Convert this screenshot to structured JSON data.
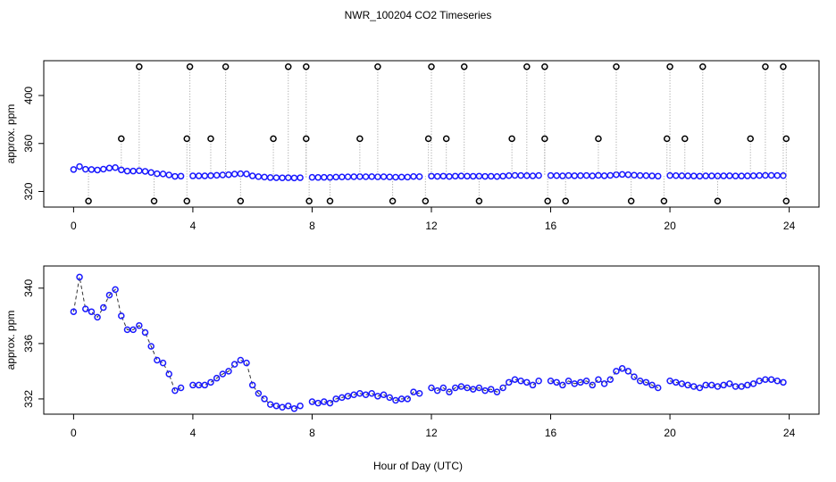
{
  "chart_data": [
    {
      "type": "scatter",
      "title": "NWR_100204  CO2 Timeseries",
      "ylabel": "approx. ppm",
      "xlim": [
        -1,
        25
      ],
      "ylim": [
        307,
        429
      ],
      "xticks": [
        0,
        4,
        8,
        12,
        16,
        20,
        24
      ],
      "yticks": [
        320,
        360,
        400
      ],
      "series": [
        {
          "color": "#1a1aff",
          "marker": "circle",
          "x": [
            0,
            0.2,
            0.4,
            0.6,
            0.8,
            1,
            1.2,
            1.4,
            1.6,
            1.8,
            2,
            2.2,
            2.4,
            2.6,
            2.8,
            3,
            3.2,
            3.4,
            3.6,
            3.8,
            4,
            4.2,
            4.4,
            4.6,
            4.8,
            5,
            5.2,
            5.4,
            5.6,
            5.8,
            6,
            6.2,
            6.4,
            6.6,
            6.8,
            7,
            7.2,
            7.4,
            7.6,
            7.8,
            8,
            8.2,
            8.4,
            8.6,
            8.8,
            9,
            9.2,
            9.4,
            9.6,
            9.8,
            10,
            10.2,
            10.4,
            10.6,
            10.8,
            11,
            11.2,
            11.4,
            11.6,
            11.8,
            12,
            12.2,
            12.4,
            12.6,
            12.8,
            13,
            13.2,
            13.4,
            13.6,
            13.8,
            14,
            14.2,
            14.4,
            14.6,
            14.8,
            15,
            15.2,
            15.4,
            15.6,
            15.8,
            16,
            16.2,
            16.4,
            16.6,
            16.8,
            17,
            17.2,
            17.4,
            17.6,
            17.8,
            18,
            18.2,
            18.4,
            18.6,
            18.8,
            19,
            19.2,
            19.4,
            19.6,
            19.8,
            20,
            20.2,
            20.4,
            20.6,
            20.8,
            21,
            21.2,
            21.4,
            21.6,
            21.8,
            22,
            22.2,
            22.4,
            22.6,
            22.8,
            23,
            23.2,
            23.4,
            23.6,
            23.8
          ],
          "values": [
            338.3,
            340.8,
            338.5,
            338.3,
            337.9,
            338.6,
            339.5,
            339.9,
            338,
            337,
            337,
            337.3,
            336.8,
            335.8,
            334.8,
            334.6,
            333.8,
            332.6,
            332.8,
            null,
            333,
            333,
            333,
            333.2,
            333.5,
            333.8,
            334,
            334.5,
            334.8,
            334.6,
            333,
            332.4,
            332,
            331.6,
            331.5,
            331.4,
            331.5,
            331.3,
            331.5,
            null,
            331.8,
            331.7,
            331.8,
            331.7,
            332,
            332.1,
            332.2,
            332.3,
            332.4,
            332.3,
            332.4,
            332.2,
            332.3,
            332.1,
            331.9,
            332,
            332,
            332.5,
            332.4,
            null,
            332.8,
            332.6,
            332.8,
            332.5,
            332.8,
            332.9,
            332.8,
            332.7,
            332.8,
            332.6,
            332.7,
            332.5,
            332.8,
            333.2,
            333.4,
            333.3,
            333.2,
            333,
            333.3,
            null,
            333.3,
            333.2,
            333,
            333.3,
            333.1,
            333.2,
            333.3,
            333,
            333.4,
            333.1,
            333.4,
            334,
            334.2,
            334,
            333.6,
            333.3,
            333.2,
            333,
            332.8,
            null,
            333.3,
            333.2,
            333.1,
            333,
            332.9,
            332.8,
            333,
            333,
            332.9,
            333,
            333.1,
            332.9,
            332.9,
            333,
            333.1,
            333.3,
            333.4,
            333.4,
            333.3,
            333.2
          ]
        },
        {
          "color": "#000000",
          "marker": "circle",
          "stems": true,
          "x": [
            0.5,
            1.6,
            2.2,
            2.7,
            3.8,
            3.8,
            3.9,
            4.6,
            5.1,
            5.6,
            6.7,
            7.2,
            7.8,
            7.8,
            7.9,
            8.6,
            9.6,
            10.2,
            10.7,
            11.8,
            11.9,
            12,
            12.5,
            13.1,
            13.6,
            14.7,
            15.2,
            15.8,
            15.8,
            15.9,
            16.5,
            17.6,
            18.2,
            18.7,
            19.8,
            19.9,
            20,
            20.5,
            21.1,
            21.6,
            22.7,
            23.2,
            23.8,
            23.9,
            23.9
          ],
          "values": [
            312,
            364,
            424,
            312,
            364,
            312,
            424,
            364,
            424,
            312,
            364,
            424,
            424,
            364,
            312,
            312,
            364,
            424,
            312,
            312,
            364,
            424,
            364,
            424,
            312,
            364,
            424,
            424,
            364,
            312,
            312,
            364,
            424,
            312,
            312,
            364,
            424,
            364,
            424,
            312,
            364,
            424,
            424,
            364,
            312
          ]
        }
      ]
    },
    {
      "type": "line",
      "ylabel": "approx. ppm",
      "xlabel": "Hour of Day (UTC)",
      "xlim": [
        -1,
        25
      ],
      "ylim": [
        330.9,
        341.6
      ],
      "xticks": [
        0,
        4,
        8,
        12,
        16,
        20,
        24
      ],
      "yticks": [
        332,
        336,
        340
      ],
      "series": [
        {
          "color": "#1a1aff",
          "marker": "circle",
          "line": "#333333",
          "x": [
            0,
            0.2,
            0.4,
            0.6,
            0.8,
            1,
            1.2,
            1.4,
            1.6,
            1.8,
            2,
            2.2,
            2.4,
            2.6,
            2.8,
            3,
            3.2,
            3.4,
            3.6,
            3.8,
            4,
            4.2,
            4.4,
            4.6,
            4.8,
            5,
            5.2,
            5.4,
            5.6,
            5.8,
            6,
            6.2,
            6.4,
            6.6,
            6.8,
            7,
            7.2,
            7.4,
            7.6,
            7.8,
            8,
            8.2,
            8.4,
            8.6,
            8.8,
            9,
            9.2,
            9.4,
            9.6,
            9.8,
            10,
            10.2,
            10.4,
            10.6,
            10.8,
            11,
            11.2,
            11.4,
            11.6,
            11.8,
            12,
            12.2,
            12.4,
            12.6,
            12.8,
            13,
            13.2,
            13.4,
            13.6,
            13.8,
            14,
            14.2,
            14.4,
            14.6,
            14.8,
            15,
            15.2,
            15.4,
            15.6,
            15.8,
            16,
            16.2,
            16.4,
            16.6,
            16.8,
            17,
            17.2,
            17.4,
            17.6,
            17.8,
            18,
            18.2,
            18.4,
            18.6,
            18.8,
            19,
            19.2,
            19.4,
            19.6,
            19.8,
            20,
            20.2,
            20.4,
            20.6,
            20.8,
            21,
            21.2,
            21.4,
            21.6,
            21.8,
            22,
            22.2,
            22.4,
            22.6,
            22.8,
            23,
            23.2,
            23.4,
            23.6,
            23.8
          ],
          "values": [
            338.3,
            340.8,
            338.5,
            338.3,
            337.9,
            338.6,
            339.5,
            339.9,
            338,
            337,
            337,
            337.3,
            336.8,
            335.8,
            334.8,
            334.6,
            333.8,
            332.6,
            332.8,
            null,
            333,
            333,
            333,
            333.2,
            333.5,
            333.8,
            334,
            334.5,
            334.8,
            334.6,
            333,
            332.4,
            332,
            331.6,
            331.5,
            331.4,
            331.5,
            331.3,
            331.5,
            null,
            331.8,
            331.7,
            331.8,
            331.7,
            332,
            332.1,
            332.2,
            332.3,
            332.4,
            332.3,
            332.4,
            332.2,
            332.3,
            332.1,
            331.9,
            332,
            332,
            332.5,
            332.4,
            null,
            332.8,
            332.6,
            332.8,
            332.5,
            332.8,
            332.9,
            332.8,
            332.7,
            332.8,
            332.6,
            332.7,
            332.5,
            332.8,
            333.2,
            333.4,
            333.3,
            333.2,
            333,
            333.3,
            null,
            333.3,
            333.2,
            333,
            333.3,
            333.1,
            333.2,
            333.3,
            333,
            333.4,
            333.1,
            333.4,
            334,
            334.2,
            334,
            333.6,
            333.3,
            333.2,
            333,
            332.8,
            null,
            333.3,
            333.2,
            333.1,
            333,
            332.9,
            332.8,
            333,
            333,
            332.9,
            333,
            333.1,
            332.9,
            332.9,
            333,
            333.1,
            333.3,
            333.4,
            333.4,
            333.3,
            333.2
          ]
        }
      ]
    }
  ]
}
